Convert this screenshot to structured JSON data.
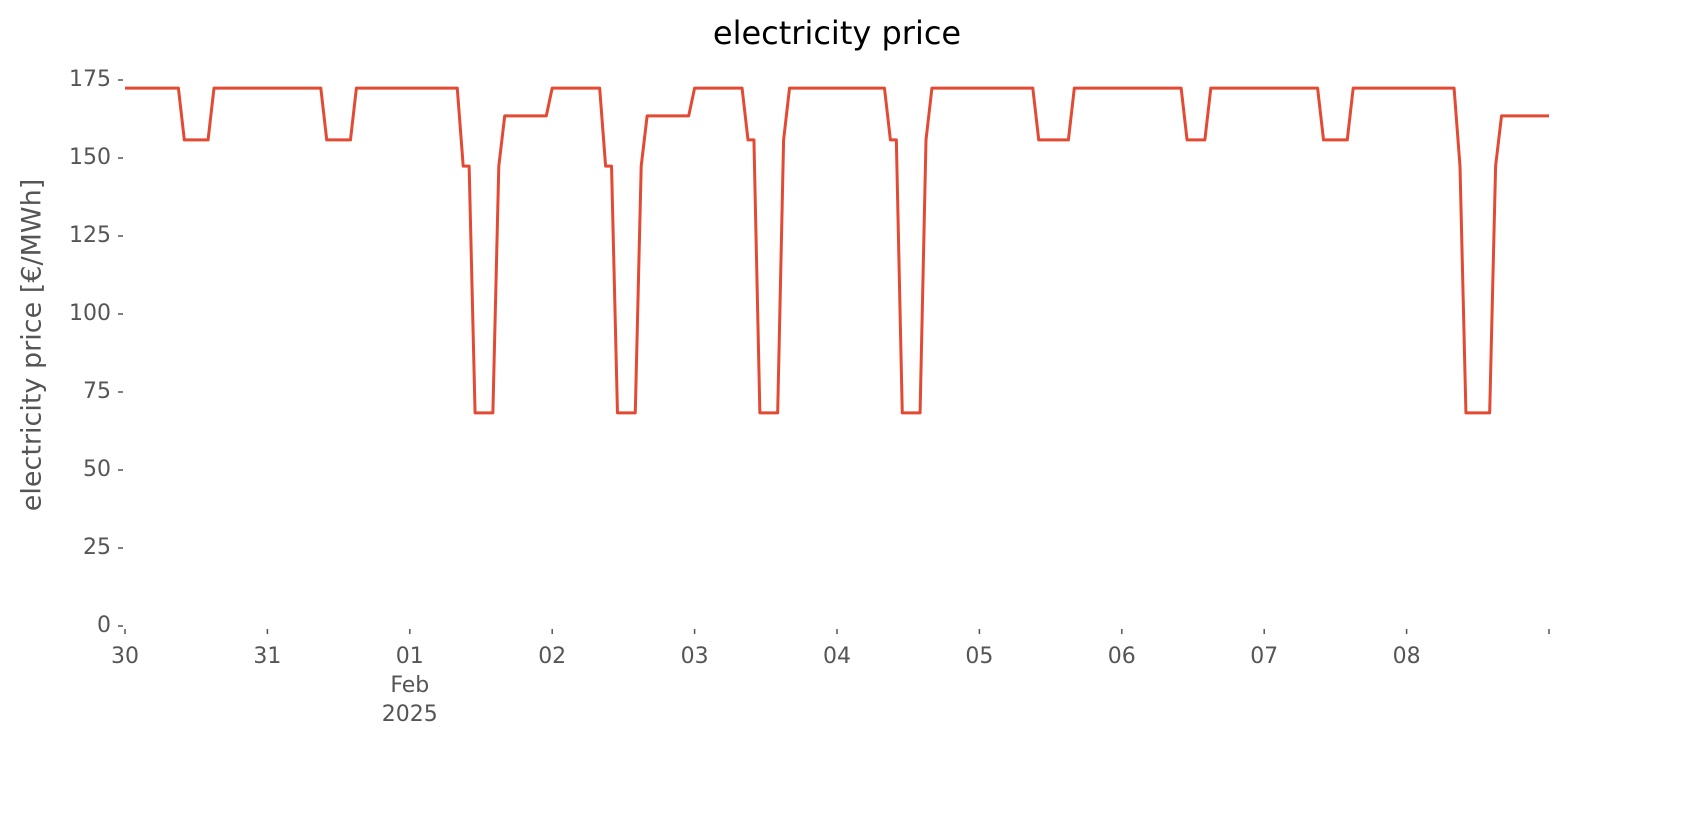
{
  "chart_data": {
    "type": "line",
    "title": "electricity price",
    "ylabel": "electricity price [€/MWh]",
    "x": [
      "2025-01-30T00:00",
      "2025-01-30T09:00",
      "2025-01-30T10:00",
      "2025-01-30T14:00",
      "2025-01-30T15:00",
      "2025-01-31T09:00",
      "2025-01-31T10:00",
      "2025-01-31T14:00",
      "2025-01-31T15:00",
      "2025-02-01T08:00",
      "2025-02-01T09:00",
      "2025-02-01T10:00",
      "2025-02-01T11:00",
      "2025-02-01T14:00",
      "2025-02-01T15:00",
      "2025-02-01T16:00",
      "2025-02-01T23:00",
      "2025-02-02T00:00",
      "2025-02-02T08:00",
      "2025-02-02T09:00",
      "2025-02-02T10:00",
      "2025-02-02T11:00",
      "2025-02-02T14:00",
      "2025-02-02T15:00",
      "2025-02-02T16:00",
      "2025-02-02T23:00",
      "2025-02-03T00:00",
      "2025-02-03T08:00",
      "2025-02-03T09:00",
      "2025-02-03T10:00",
      "2025-02-03T11:00",
      "2025-02-03T14:00",
      "2025-02-03T15:00",
      "2025-02-03T16:00",
      "2025-02-04T08:00",
      "2025-02-04T09:00",
      "2025-02-04T10:00",
      "2025-02-04T11:00",
      "2025-02-04T14:00",
      "2025-02-04T15:00",
      "2025-02-04T16:00",
      "2025-02-05T09:00",
      "2025-02-05T10:00",
      "2025-02-05T15:00",
      "2025-02-05T16:00",
      "2025-02-06T10:00",
      "2025-02-06T11:00",
      "2025-02-06T14:00",
      "2025-02-06T15:00",
      "2025-02-07T09:00",
      "2025-02-07T10:00",
      "2025-02-07T14:00",
      "2025-02-07T15:00",
      "2025-02-08T08:00",
      "2025-02-08T09:00",
      "2025-02-08T10:00",
      "2025-02-08T14:00",
      "2025-02-08T15:00",
      "2025-02-08T16:00",
      "2025-02-09T00:00"
    ],
    "series": [
      {
        "name": "electricity price",
        "color": "#e24a33",
        "values": [
          172.4,
          172.4,
          155.8,
          155.8,
          172.4,
          172.4,
          155.8,
          155.8,
          172.4,
          172.4,
          147.4,
          147.4,
          68.3,
          68.3,
          147.4,
          163.5,
          163.5,
          172.4,
          172.4,
          147.4,
          147.4,
          68.3,
          68.3,
          147.4,
          163.5,
          163.5,
          172.4,
          172.4,
          155.8,
          155.8,
          68.3,
          68.3,
          155.8,
          172.4,
          172.4,
          155.8,
          155.8,
          68.3,
          68.3,
          155.8,
          172.4,
          172.4,
          155.8,
          155.8,
          172.4,
          172.4,
          155.8,
          155.8,
          172.4,
          172.4,
          155.8,
          155.8,
          172.4,
          172.4,
          147.4,
          68.3,
          68.3,
          147.4,
          163.5,
          163.5
        ]
      }
    ],
    "xlim": [
      "2025-01-30T00:00",
      "2025-02-09T00:00"
    ],
    "xticks": [
      {
        "value": "2025-01-30T00:00",
        "label": "30"
      },
      {
        "value": "2025-01-31T00:00",
        "label": "31"
      },
      {
        "value": "2025-02-01T00:00",
        "label": "01\nFeb\n2025"
      },
      {
        "value": "2025-02-02T00:00",
        "label": "02"
      },
      {
        "value": "2025-02-03T00:00",
        "label": "03"
      },
      {
        "value": "2025-02-04T00:00",
        "label": "04"
      },
      {
        "value": "2025-02-05T00:00",
        "label": "05"
      },
      {
        "value": "2025-02-06T00:00",
        "label": "06"
      },
      {
        "value": "2025-02-07T00:00",
        "label": "07"
      },
      {
        "value": "2025-02-08T00:00",
        "label": "08"
      },
      {
        "value": "2025-02-09T00:00"
      }
    ],
    "ylim": [
      0,
      175
    ],
    "yticks": [
      0,
      25,
      50,
      75,
      100,
      125,
      150,
      175
    ],
    "grid": false
  }
}
